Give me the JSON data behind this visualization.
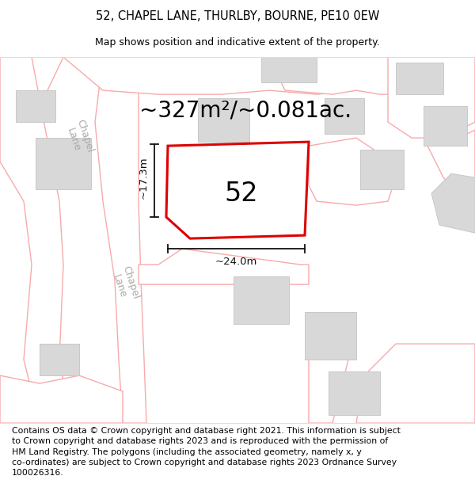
{
  "title": "52, CHAPEL LANE, THURLBY, BOURNE, PE10 0EW",
  "subtitle": "Map shows position and indicative extent of the property.",
  "footer": "Contains OS data © Crown copyright and database right 2021. This information is subject\nto Crown copyright and database rights 2023 and is reproduced with the permission of\nHM Land Registry. The polygons (including the associated geometry, namely x, y\nco-ordinates) are subject to Crown copyright and database rights 2023 Ordnance Survey\n100026316.",
  "area_label": "~327m²/~0.081ac.",
  "plot_number": "52",
  "width_label": "~24.0m",
  "height_label": "~17.3m",
  "background_color": "#ffffff",
  "map_bg_color": "#ffffff",
  "road_stroke_color": "#f8aaaa",
  "building_fill_color": "#d8d8d8",
  "building_stroke_color": "#c8c8c8",
  "plot_stroke_color": "#dd0000",
  "dimension_color": "#111111",
  "title_fontsize": 10.5,
  "subtitle_fontsize": 9,
  "footer_fontsize": 7.8,
  "area_fontsize": 20,
  "plot_number_fontsize": 24,
  "dim_fontsize": 9.5,
  "road_label_fontsize": 9,
  "lane_label_color": "#aaaaaa"
}
